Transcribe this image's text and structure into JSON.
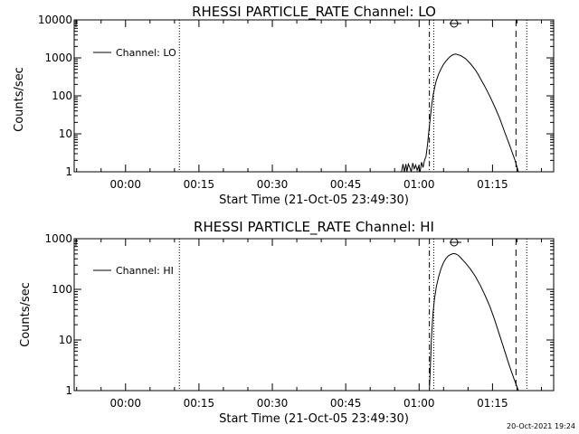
{
  "timestamp": "20-Oct-2021 19:24",
  "chart_data": [
    {
      "type": "line",
      "title": "RHESSI PARTICLE_RATE Channel: LO",
      "xlabel": "Start Time (21-Oct-05 23:49:30)",
      "ylabel": "Counts/sec",
      "x_unit": "minutes after 2005-10-21 23:49:30",
      "xlim": [
        0,
        98
      ],
      "ylim": [
        1,
        10000
      ],
      "yscale": "log",
      "grid": false,
      "legend_position": "top-left",
      "xtick_values": [
        10.5,
        25.5,
        40.5,
        55.5,
        70.5,
        85.5
      ],
      "xtick_labels": [
        "00:00",
        "00:15",
        "00:30",
        "00:45",
        "01:00",
        "01:15"
      ],
      "ytick_values": [
        1,
        10,
        100,
        1000,
        10000
      ],
      "ytick_labels": [
        "1",
        "10",
        "100",
        "1000",
        "10000"
      ],
      "series": [
        {
          "name": "Channel: LO",
          "color": "#000000",
          "x": [
            66.9,
            67.2,
            67.5,
            67.8,
            68.0,
            68.3,
            68.6,
            68.9,
            69.2,
            69.5,
            69.8,
            70.1,
            70.4,
            70.7,
            71.0,
            71.3,
            71.6,
            71.9,
            72.2,
            72.5,
            72.8,
            73.1,
            73.4,
            73.7,
            74.0,
            74.5,
            75.0,
            75.5,
            76.0,
            76.5,
            77.0,
            77.5,
            78.0,
            79.0,
            80.0,
            81.0,
            82.0,
            82.5,
            83.0,
            84.0,
            85.0,
            86.0,
            87.0,
            88.0,
            89.0,
            90.0,
            90.8
          ],
          "y": [
            1,
            1.6,
            1,
            1.6,
            1,
            1.6,
            1.3,
            1,
            1.7,
            1.2,
            1.5,
            1.1,
            1.4,
            1,
            1.8,
            1.3,
            2,
            2.5,
            5,
            12,
            28,
            60,
            110,
            170,
            250,
            380,
            520,
            680,
            830,
            980,
            1120,
            1220,
            1260,
            1150,
            950,
            700,
            480,
            380,
            290,
            170,
            95,
            50,
            25,
            11,
            5,
            2.2,
            1
          ]
        }
      ],
      "vertical_markers": [
        {
          "x": 21.5,
          "style": "dotted"
        },
        {
          "x": 72.6,
          "style": "dash-dot"
        },
        {
          "x": 73.5,
          "style": "dotted"
        },
        {
          "x": 90.3,
          "style": "dashed"
        },
        {
          "x": 92.5,
          "style": "dotted"
        }
      ]
    },
    {
      "type": "line",
      "title": "RHESSI PARTICLE_RATE Channel: HI",
      "xlabel": "Start Time (21-Oct-05 23:49:30)",
      "ylabel": "Counts/sec",
      "x_unit": "minutes after 2005-10-21 23:49:30",
      "xlim": [
        0,
        98
      ],
      "ylim": [
        1,
        1000
      ],
      "yscale": "log",
      "grid": false,
      "legend_position": "top-left",
      "xtick_values": [
        10.5,
        25.5,
        40.5,
        55.5,
        70.5,
        85.5
      ],
      "xtick_labels": [
        "00:00",
        "00:15",
        "00:30",
        "00:45",
        "01:00",
        "01:15"
      ],
      "ytick_values": [
        1,
        10,
        100,
        1000
      ],
      "ytick_labels": [
        "1",
        "10",
        "100",
        "1000"
      ],
      "series": [
        {
          "name": "Channel: HI",
          "color": "#000000",
          "x": [
            72.6,
            72.8,
            73.0,
            73.3,
            73.6,
            74.0,
            74.5,
            75.0,
            75.5,
            76.0,
            76.5,
            77.0,
            77.5,
            78.0,
            78.5,
            79.0,
            80.0,
            81.0,
            82.0,
            83.0,
            84.0,
            85.0,
            86.0,
            87.0,
            88.0,
            89.0,
            90.0,
            90.8
          ],
          "y": [
            1,
            3,
            10,
            30,
            60,
            110,
            180,
            260,
            340,
            410,
            460,
            490,
            510,
            500,
            470,
            420,
            330,
            250,
            180,
            120,
            75,
            45,
            24,
            12,
            6,
            3,
            1.6,
            1
          ]
        }
      ],
      "vertical_markers": [
        {
          "x": 21.5,
          "style": "dotted"
        },
        {
          "x": 72.6,
          "style": "dash-dot"
        },
        {
          "x": 73.5,
          "style": "dotted"
        },
        {
          "x": 90.3,
          "style": "dashed"
        },
        {
          "x": 92.5,
          "style": "dotted"
        }
      ]
    }
  ]
}
